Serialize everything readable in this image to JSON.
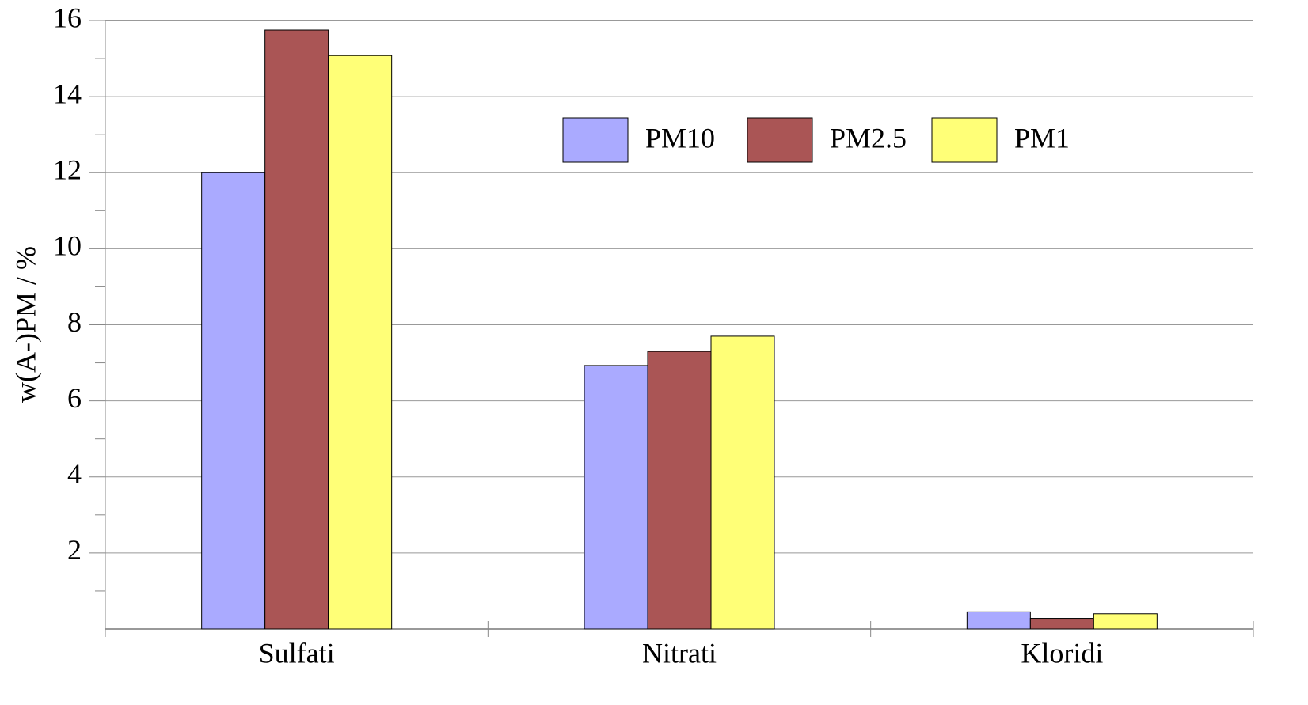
{
  "chart_data": {
    "type": "bar",
    "y_label": "w(A-)PM / %",
    "categories": [
      "Sulfati",
      "Nitrati",
      "Kloridi"
    ],
    "series": [
      {
        "name": "PM10",
        "color": "#aaaaff",
        "values": [
          12.0,
          6.93,
          0.45
        ]
      },
      {
        "name": "PM2.5",
        "color": "#aa5555",
        "values": [
          15.75,
          7.3,
          0.28
        ]
      },
      {
        "name": "PM1",
        "color": "#ffff77",
        "values": [
          15.08,
          7.7,
          0.4
        ]
      }
    ],
    "ylim": [
      0,
      16
    ],
    "yticks": [
      2,
      4,
      6,
      8,
      10,
      12,
      14,
      16
    ],
    "minor_yticks": [
      1,
      3,
      5,
      7,
      9,
      11,
      13,
      15
    ],
    "grid": true,
    "legend": "top"
  }
}
